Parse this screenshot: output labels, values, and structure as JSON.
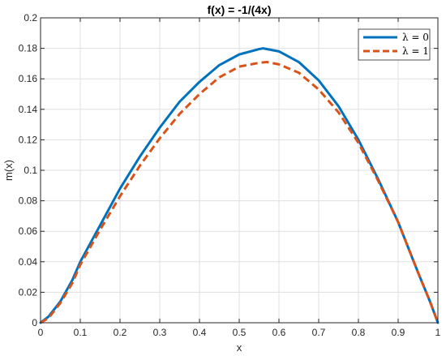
{
  "chart_data": {
    "type": "line",
    "title": "f(x) = -1/(4x)",
    "xlabel": "x",
    "ylabel": "m(x)",
    "xlim": [
      0,
      1
    ],
    "ylim": [
      0,
      0.2
    ],
    "xticks": [
      0,
      0.1,
      0.2,
      0.3,
      0.4,
      0.5,
      0.6,
      0.7,
      0.8,
      0.9,
      1
    ],
    "yticks": [
      0,
      0.02,
      0.04,
      0.06,
      0.08,
      0.1,
      0.12,
      0.14,
      0.16,
      0.18,
      0.2
    ],
    "xtick_labels": [
      "0",
      "0.1",
      "0.2",
      "0.3",
      "0.4",
      "0.5",
      "0.6",
      "0.7",
      "0.8",
      "0.9",
      "1"
    ],
    "ytick_labels": [
      "0",
      "0.02",
      "0.04",
      "0.06",
      "0.08",
      "0.1",
      "0.12",
      "0.14",
      "0.16",
      "0.18",
      "0.2"
    ],
    "grid": true,
    "legend_position": "top-right",
    "series": [
      {
        "name": "λ = 0",
        "style": "solid",
        "color": "#0072bd",
        "x": [
          0,
          0.02,
          0.05,
          0.08,
          0.1,
          0.15,
          0.2,
          0.25,
          0.3,
          0.35,
          0.4,
          0.45,
          0.5,
          0.55,
          0.56,
          0.6,
          0.65,
          0.7,
          0.75,
          0.8,
          0.85,
          0.9,
          0.95,
          0.98,
          1
        ],
        "y": [
          0,
          0.004,
          0.014,
          0.028,
          0.04,
          0.064,
          0.088,
          0.109,
          0.128,
          0.145,
          0.158,
          0.169,
          0.176,
          0.1795,
          0.18,
          0.178,
          0.171,
          0.159,
          0.142,
          0.12,
          0.094,
          0.066,
          0.033,
          0.014,
          0
        ]
      },
      {
        "name": "λ = 1",
        "style": "dashed",
        "color": "#d95319",
        "x": [
          0,
          0.02,
          0.05,
          0.08,
          0.1,
          0.15,
          0.2,
          0.25,
          0.3,
          0.35,
          0.4,
          0.45,
          0.5,
          0.55,
          0.57,
          0.6,
          0.65,
          0.7,
          0.75,
          0.8,
          0.85,
          0.9,
          0.95,
          0.98,
          1
        ],
        "y": [
          0,
          0.003,
          0.013,
          0.026,
          0.038,
          0.061,
          0.083,
          0.103,
          0.121,
          0.137,
          0.15,
          0.161,
          0.168,
          0.1705,
          0.171,
          0.1695,
          0.164,
          0.153,
          0.138,
          0.118,
          0.093,
          0.066,
          0.033,
          0.014,
          0
        ]
      }
    ]
  }
}
